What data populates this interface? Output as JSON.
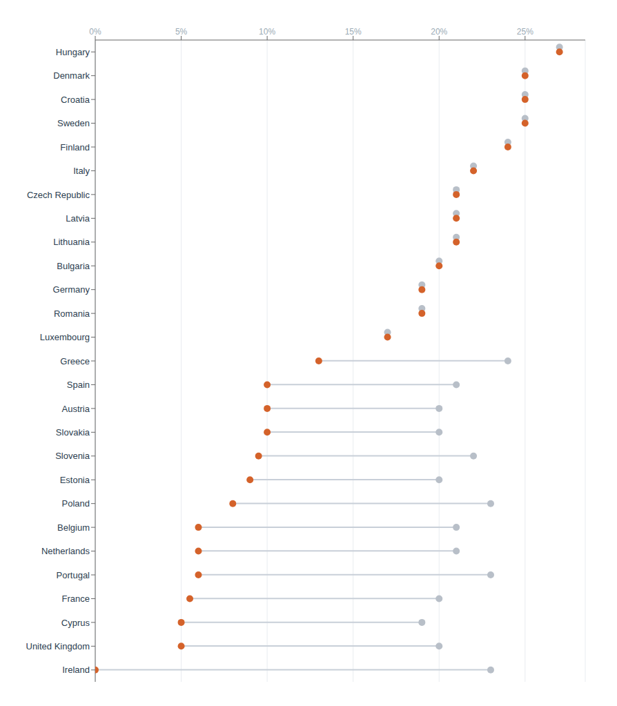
{
  "chart_data": {
    "type": "dumbbell",
    "orientation": "horizontal",
    "categories": [
      "Hungary",
      "Denmark",
      "Croatia",
      "Sweden",
      "Finland",
      "Italy",
      "Czech Republic",
      "Latvia",
      "Lithuania",
      "Bulgaria",
      "Germany",
      "Romania",
      "Luxembourg",
      "Greece",
      "Spain",
      "Austria",
      "Slovakia",
      "Slovenia",
      "Estonia",
      "Poland",
      "Belgium",
      "Netherlands",
      "Portugal",
      "France",
      "Cyprus",
      "United Kingdom",
      "Ireland"
    ],
    "series": [
      {
        "color": "#D4622A",
        "values": [
          27,
          25,
          25,
          25,
          24,
          22,
          21,
          21,
          21,
          20,
          19,
          19,
          17,
          13,
          10,
          10,
          10,
          9.5,
          9,
          8,
          6,
          6,
          6,
          5.5,
          5,
          5,
          0
        ]
      },
      {
        "color": "#B8BFC8",
        "values": [
          27,
          25,
          25,
          25,
          24,
          22,
          21,
          21,
          21,
          20,
          19,
          19,
          17,
          24,
          21,
          20,
          20,
          22,
          20,
          23,
          21,
          21,
          23,
          20,
          19,
          20,
          23
        ]
      }
    ],
    "xlim": [
      0,
      28.5
    ],
    "xticks": [
      {
        "value": 0,
        "label": "0%"
      },
      {
        "value": 5,
        "label": "5%"
      },
      {
        "value": 10,
        "label": "10%"
      },
      {
        "value": 15,
        "label": "15%"
      },
      {
        "value": 20,
        "label": "20%"
      },
      {
        "value": 25,
        "label": "25%"
      }
    ],
    "grid": true
  }
}
